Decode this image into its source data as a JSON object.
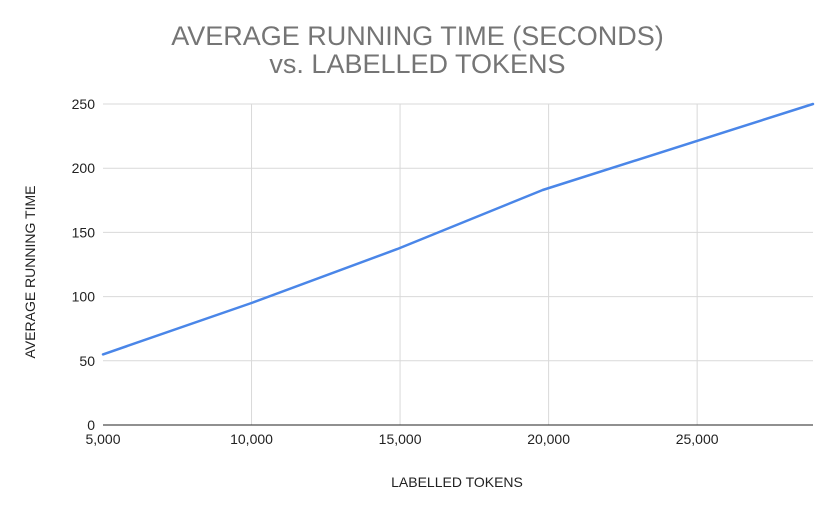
{
  "chart_data": {
    "type": "line",
    "title_lines": [
      "AVERAGE RUNNING TIME (SECONDS)",
      "vs. LABELLED TOKENS"
    ],
    "xlabel": "LABELLED TOKENS",
    "ylabel": "AVERAGE RUNNING TIME",
    "x_ticks": [
      5000,
      10000,
      15000,
      20000,
      25000
    ],
    "x_tick_labels": [
      "5,000",
      "10,000",
      "15,000",
      "20,000",
      "25,000"
    ],
    "y_ticks": [
      0,
      50,
      100,
      150,
      200,
      250
    ],
    "y_tick_labels": [
      "0",
      "50",
      "100",
      "150",
      "200",
      "250"
    ],
    "xlim": [
      5000,
      28900
    ],
    "ylim": [
      0,
      250
    ],
    "grid": true,
    "legend": "none",
    "series": [
      {
        "color": "#4a86e8",
        "x": [
          5000,
          10000,
          14900,
          19800,
          28900
        ],
        "y": [
          55,
          95,
          137,
          183,
          250
        ]
      }
    ],
    "colors": {
      "line": "#4a86e8",
      "grid": "#d9d9d9",
      "axis": "#222222",
      "title": "#757575"
    }
  }
}
